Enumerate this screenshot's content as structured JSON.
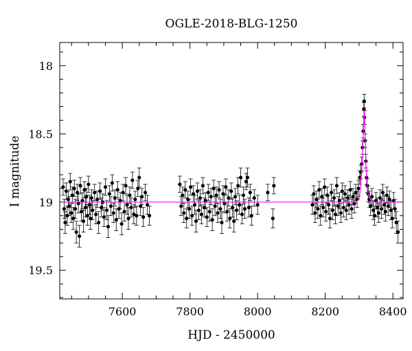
{
  "chart_data": {
    "type": "scatter",
    "title": "OGLE-2018-BLG-1250",
    "xlabel": "HJD - 2450000",
    "ylabel": "I magnitude",
    "xlim": [
      7415,
      8430
    ],
    "ylim": [
      19.71,
      17.83
    ],
    "y_inverted": true,
    "x_ticks": [
      7600,
      7800,
      8000,
      8200,
      8400
    ],
    "y_ticks": [
      18,
      18.5,
      19,
      19.5
    ],
    "x_tick_labels": [
      "7600",
      "7800",
      "8000",
      "8200",
      "8400"
    ],
    "y_tick_labels": [
      "18",
      "18.5",
      "19",
      "19.5"
    ],
    "grid": false,
    "series": [
      {
        "kind": "data",
        "color": "#000000",
        "points": [
          [
            7425,
            18.89,
            0.06
          ],
          [
            7428,
            19.05,
            0.07
          ],
          [
            7431,
            19.15,
            0.08
          ],
          [
            7434,
            18.92,
            0.06
          ],
          [
            7437,
            19.1,
            0.07
          ],
          [
            7440,
            18.98,
            0.06
          ],
          [
            7443,
            19.03,
            0.07
          ],
          [
            7446,
            18.85,
            0.06
          ],
          [
            7449,
            19.08,
            0.07
          ],
          [
            7452,
            18.95,
            0.06
          ],
          [
            7455,
            19.12,
            0.08
          ],
          [
            7458,
            18.9,
            0.06
          ],
          [
            7461,
            19.05,
            0.07
          ],
          [
            7464,
            19.22,
            0.08
          ],
          [
            7467,
            18.93,
            0.06
          ],
          [
            7470,
            19.01,
            0.07
          ],
          [
            7473,
            19.25,
            0.08
          ],
          [
            7476,
            18.88,
            0.06
          ],
          [
            7479,
            19.07,
            0.07
          ],
          [
            7482,
            18.99,
            0.06
          ],
          [
            7485,
            19.14,
            0.08
          ],
          [
            7488,
            18.91,
            0.06
          ],
          [
            7491,
            19.04,
            0.07
          ],
          [
            7494,
            18.96,
            0.06
          ],
          [
            7497,
            19.1,
            0.07
          ],
          [
            7500,
            18.87,
            0.06
          ],
          [
            7503,
            19.02,
            0.07
          ],
          [
            7506,
            19.12,
            0.08
          ],
          [
            7509,
            18.97,
            0.06
          ],
          [
            7512,
            19.06,
            0.07
          ],
          [
            7518,
            18.93,
            0.06
          ],
          [
            7522,
            19.09,
            0.07
          ],
          [
            7526,
            18.98,
            0.06
          ],
          [
            7530,
            19.15,
            0.08
          ],
          [
            7534,
            18.92,
            0.06
          ],
          [
            7538,
            19.04,
            0.07
          ],
          [
            7542,
            19.0,
            0.06
          ],
          [
            7546,
            19.11,
            0.07
          ],
          [
            7550,
            18.89,
            0.06
          ],
          [
            7554,
            19.06,
            0.07
          ],
          [
            7558,
            19.18,
            0.08
          ],
          [
            7562,
            18.94,
            0.06
          ],
          [
            7566,
            19.03,
            0.07
          ],
          [
            7570,
            18.86,
            0.06
          ],
          [
            7574,
            19.08,
            0.07
          ],
          [
            7578,
            18.97,
            0.06
          ],
          [
            7582,
            19.13,
            0.08
          ],
          [
            7586,
            18.91,
            0.06
          ],
          [
            7590,
            19.05,
            0.07
          ],
          [
            7594,
            18.99,
            0.06
          ],
          [
            7598,
            19.16,
            0.08
          ],
          [
            7602,
            18.93,
            0.06
          ],
          [
            7606,
            19.07,
            0.07
          ],
          [
            7610,
            18.88,
            0.06
          ],
          [
            7614,
            19.02,
            0.07
          ],
          [
            7618,
            19.12,
            0.08
          ],
          [
            7622,
            18.95,
            0.06
          ],
          [
            7626,
            19.04,
            0.07
          ],
          [
            7630,
            18.84,
            0.06
          ],
          [
            7634,
            19.09,
            0.07
          ],
          [
            7638,
            18.98,
            0.06
          ],
          [
            7642,
            19.1,
            0.07
          ],
          [
            7646,
            18.9,
            0.06
          ],
          [
            7650,
            18.82,
            0.07
          ],
          [
            7654,
            19.03,
            0.07
          ],
          [
            7658,
            18.96,
            0.06
          ],
          [
            7662,
            19.11,
            0.07
          ],
          [
            7668,
            18.93,
            0.06
          ],
          [
            7674,
            19.02,
            0.07
          ],
          [
            7680,
            19.1,
            0.07
          ],
          [
            7770,
            18.87,
            0.06
          ],
          [
            7774,
            19.03,
            0.07
          ],
          [
            7778,
            18.95,
            0.06
          ],
          [
            7782,
            19.08,
            0.07
          ],
          [
            7786,
            18.91,
            0.06
          ],
          [
            7790,
            19.12,
            0.07
          ],
          [
            7794,
            18.98,
            0.06
          ],
          [
            7798,
            19.05,
            0.07
          ],
          [
            7802,
            18.89,
            0.06
          ],
          [
            7806,
            19.1,
            0.07
          ],
          [
            7810,
            18.94,
            0.06
          ],
          [
            7814,
            19.02,
            0.07
          ],
          [
            7818,
            19.14,
            0.08
          ],
          [
            7822,
            18.92,
            0.06
          ],
          [
            7826,
            19.06,
            0.07
          ],
          [
            7830,
            18.97,
            0.06
          ],
          [
            7834,
            19.09,
            0.07
          ],
          [
            7838,
            18.88,
            0.06
          ],
          [
            7842,
            19.04,
            0.07
          ],
          [
            7846,
            18.99,
            0.06
          ],
          [
            7850,
            19.11,
            0.07
          ],
          [
            7854,
            18.93,
            0.06
          ],
          [
            7858,
            19.07,
            0.07
          ],
          [
            7862,
            18.96,
            0.06
          ],
          [
            7866,
            19.13,
            0.08
          ],
          [
            7870,
            18.9,
            0.06
          ],
          [
            7874,
            19.03,
            0.07
          ],
          [
            7878,
            18.95,
            0.06
          ],
          [
            7882,
            19.08,
            0.07
          ],
          [
            7886,
            18.91,
            0.06
          ],
          [
            7890,
            19.05,
            0.07
          ],
          [
            7894,
            19.15,
            0.08
          ],
          [
            7898,
            18.94,
            0.06
          ],
          [
            7902,
            19.01,
            0.07
          ],
          [
            7906,
            18.89,
            0.06
          ],
          [
            7910,
            19.07,
            0.07
          ],
          [
            7914,
            18.97,
            0.06
          ],
          [
            7918,
            19.12,
            0.07
          ],
          [
            7922,
            18.92,
            0.06
          ],
          [
            7926,
            19.04,
            0.07
          ],
          [
            7930,
            19.14,
            0.08
          ],
          [
            7934,
            18.96,
            0.06
          ],
          [
            7938,
            19.06,
            0.07
          ],
          [
            7942,
            18.88,
            0.06
          ],
          [
            7946,
            19.02,
            0.07
          ],
          [
            7950,
            18.82,
            0.07
          ],
          [
            7954,
            19.09,
            0.07
          ],
          [
            7958,
            18.95,
            0.06
          ],
          [
            7962,
            19.05,
            0.07
          ],
          [
            7966,
            18.85,
            0.06
          ],
          [
            7970,
            18.82,
            0.07
          ],
          [
            7974,
            19.04,
            0.07
          ],
          [
            7978,
            18.93,
            0.06
          ],
          [
            7982,
            19.1,
            0.07
          ],
          [
            7990,
            18.97,
            0.06
          ],
          [
            8000,
            19.02,
            0.07
          ],
          [
            8030,
            18.93,
            0.06
          ],
          [
            8048,
            18.88,
            0.06
          ],
          [
            8045,
            19.12,
            0.07
          ],
          [
            8162,
            19.02,
            0.07
          ],
          [
            8166,
            18.94,
            0.06
          ],
          [
            8170,
            19.08,
            0.07
          ],
          [
            8174,
            18.98,
            0.06
          ],
          [
            8178,
            19.05,
            0.07
          ],
          [
            8182,
            18.91,
            0.06
          ],
          [
            8186,
            19.1,
            0.07
          ],
          [
            8190,
            18.96,
            0.06
          ],
          [
            8194,
            19.04,
            0.07
          ],
          [
            8198,
            18.89,
            0.06
          ],
          [
            8202,
            19.07,
            0.07
          ],
          [
            8206,
            18.95,
            0.06
          ],
          [
            8210,
            19.02,
            0.07
          ],
          [
            8214,
            19.12,
            0.07
          ],
          [
            8218,
            18.93,
            0.06
          ],
          [
            8222,
            19.06,
            0.07
          ],
          [
            8226,
            18.97,
            0.06
          ],
          [
            8230,
            19.09,
            0.07
          ],
          [
            8234,
            18.88,
            0.06
          ],
          [
            8238,
            19.03,
            0.07
          ],
          [
            8242,
            18.99,
            0.06
          ],
          [
            8246,
            19.08,
            0.07
          ],
          [
            8250,
            18.92,
            0.06
          ],
          [
            8254,
            19.04,
            0.07
          ],
          [
            8258,
            18.94,
            0.06
          ],
          [
            8262,
            19.06,
            0.07
          ],
          [
            8266,
            18.97,
            0.06
          ],
          [
            8270,
            19.02,
            0.07
          ],
          [
            8274,
            18.91,
            0.06
          ],
          [
            8278,
            19.05,
            0.07
          ],
          [
            8282,
            18.96,
            0.06
          ],
          [
            8286,
            19.01,
            0.07
          ],
          [
            8290,
            18.93,
            0.06
          ],
          [
            8294,
            18.98,
            0.06
          ],
          [
            8298,
            18.9,
            0.06
          ],
          [
            8302,
            18.82,
            0.05
          ],
          [
            8305,
            18.78,
            0.05
          ],
          [
            8308,
            18.72,
            0.05
          ],
          [
            8310,
            18.6,
            0.05
          ],
          [
            8312,
            18.48,
            0.05
          ],
          [
            8314,
            18.32,
            0.05
          ],
          [
            8315,
            18.26,
            0.05
          ],
          [
            8316,
            18.38,
            0.05
          ],
          [
            8318,
            18.55,
            0.05
          ],
          [
            8320,
            18.7,
            0.05
          ],
          [
            8322,
            18.82,
            0.05
          ],
          [
            8324,
            18.88,
            0.05
          ],
          [
            8327,
            18.94,
            0.06
          ],
          [
            8330,
            18.98,
            0.06
          ],
          [
            8334,
            19.03,
            0.07
          ],
          [
            8338,
            18.96,
            0.06
          ],
          [
            8342,
            19.06,
            0.07
          ],
          [
            8346,
            19.1,
            0.07
          ],
          [
            8350,
            18.99,
            0.06
          ],
          [
            8354,
            19.04,
            0.07
          ],
          [
            8358,
            19.08,
            0.07
          ],
          [
            8362,
            18.97,
            0.06
          ],
          [
            8366,
            19.05,
            0.07
          ],
          [
            8370,
            18.93,
            0.06
          ],
          [
            8374,
            19.02,
            0.07
          ],
          [
            8378,
            19.07,
            0.07
          ],
          [
            8382,
            18.95,
            0.06
          ],
          [
            8386,
            19.03,
            0.07
          ],
          [
            8390,
            18.98,
            0.06
          ],
          [
            8394,
            19.06,
            0.07
          ],
          [
            8398,
            19.12,
            0.07
          ],
          [
            8402,
            18.99,
            0.06
          ],
          [
            8406,
            19.05,
            0.07
          ],
          [
            8410,
            19.15,
            0.08
          ],
          [
            8415,
            19.22,
            0.08
          ]
        ]
      },
      {
        "kind": "model",
        "color": "#ff00ff",
        "points": [
          [
            7420,
            19.0
          ],
          [
            8290,
            19.0
          ],
          [
            8300,
            18.98
          ],
          [
            8304,
            18.9
          ],
          [
            8307,
            18.78
          ],
          [
            8309,
            18.72
          ],
          [
            8311,
            18.6
          ],
          [
            8313,
            18.45
          ],
          [
            8315,
            18.32
          ],
          [
            8316,
            18.34
          ],
          [
            8318,
            18.52
          ],
          [
            8320,
            18.7
          ],
          [
            8322,
            18.82
          ],
          [
            8325,
            18.92
          ],
          [
            8330,
            18.97
          ],
          [
            8340,
            19.0
          ],
          [
            8428,
            19.0
          ]
        ]
      }
    ]
  }
}
